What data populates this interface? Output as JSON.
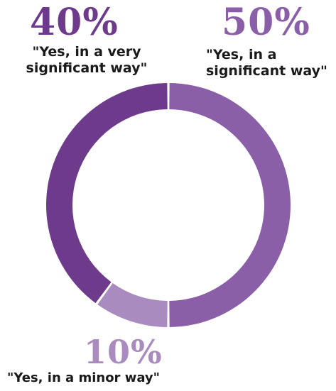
{
  "chart_data": {
    "type": "pie",
    "donut": true,
    "start": "top",
    "direction": "clockwise",
    "slices": [
      {
        "key": "s50",
        "value": 50,
        "value_label": "50%",
        "label": "\"Yes, in a significant way\"",
        "color": "#8a5fa8"
      },
      {
        "key": "s10",
        "value": 10,
        "value_label": "10%",
        "label": "\"Yes, in a minor way\"",
        "color": "#a98bbf"
      },
      {
        "key": "s40",
        "value": 40,
        "value_label": "40%",
        "label": "\"Yes, in a very significant way\"",
        "color": "#6e3a8c"
      }
    ]
  }
}
